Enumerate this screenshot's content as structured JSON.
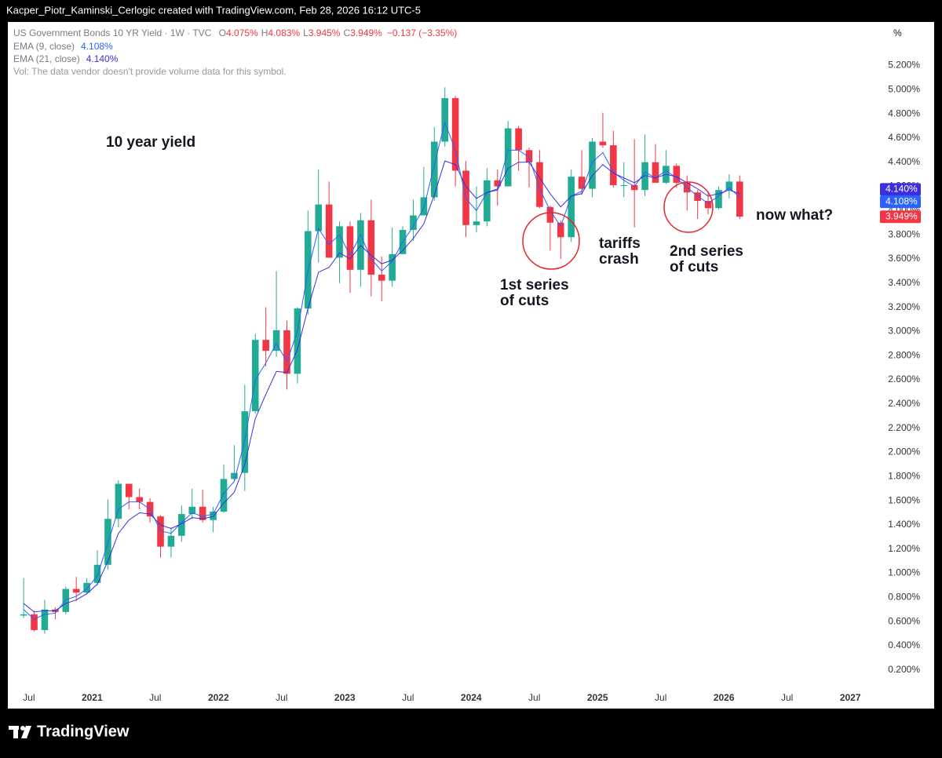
{
  "top_bar": {
    "text": "Kacper_Piotr_Kaminski_Cerlogic created with TradingView.com, Feb 28, 2026 16:12 UTC-5"
  },
  "footer": {
    "brand": "TradingView"
  },
  "chart_data": {
    "type": "candlestick",
    "header": {
      "symbol": "US Government Bonds 10 YR Yield · 1W · TVC",
      "ohlc": [
        {
          "key": "O",
          "value": 4.075,
          "label": "4.075%"
        },
        {
          "key": "H",
          "value": 4.083,
          "label": "4.083%"
        },
        {
          "key": "L",
          "value": 3.945,
          "label": "3.945%"
        },
        {
          "key": "C",
          "value": 3.949,
          "label": "3.949%"
        }
      ],
      "change": "−0.137 (−3.35%)",
      "volume_note": "Vol: The data vendor doesn't provide volume data for this symbol."
    },
    "unit_button": "%",
    "up_color": "#22ab94",
    "down_color": "#f23645",
    "x": [
      "2020-06",
      "2020-07",
      "2020-08",
      "2020-09",
      "2020-10",
      "2020-11",
      "2020-12",
      "2021-01",
      "2021-02",
      "2021-03",
      "2021-04",
      "2021-05",
      "2021-06",
      "2021-07",
      "2021-08",
      "2021-09",
      "2021-10",
      "2021-11",
      "2021-12",
      "2022-01",
      "2022-02",
      "2022-03",
      "2022-04",
      "2022-05",
      "2022-06",
      "2022-07",
      "2022-08",
      "2022-09",
      "2022-10",
      "2022-11",
      "2022-12",
      "2023-01",
      "2023-02",
      "2023-03",
      "2023-04",
      "2023-05",
      "2023-06",
      "2023-07",
      "2023-08",
      "2023-09",
      "2023-10",
      "2023-11",
      "2023-12",
      "2024-01",
      "2024-02",
      "2024-03",
      "2024-04",
      "2024-05",
      "2024-06",
      "2024-07",
      "2024-08",
      "2024-09",
      "2024-10",
      "2024-11",
      "2024-12",
      "2025-01",
      "2025-02",
      "2025-03",
      "2025-04",
      "2025-05",
      "2025-06",
      "2025-07",
      "2025-08",
      "2025-09",
      "2025-10",
      "2025-11",
      "2025-12",
      "2026-01",
      "2026-02"
    ],
    "open": [
      0.65,
      0.66,
      0.53,
      0.7,
      0.68,
      0.87,
      0.84,
      0.92,
      1.07,
      1.45,
      1.74,
      1.63,
      1.59,
      1.47,
      1.22,
      1.31,
      1.49,
      1.55,
      1.44,
      1.51,
      1.78,
      1.83,
      2.34,
      2.93,
      2.84,
      3.01,
      2.65,
      3.19,
      3.83,
      4.05,
      3.61,
      3.87,
      3.51,
      3.92,
      3.47,
      3.42,
      3.64,
      3.84,
      3.96,
      4.11,
      4.57,
      4.93,
      4.33,
      3.88,
      3.91,
      4.25,
      4.2,
      4.68,
      4.5,
      4.4,
      4.03,
      3.9,
      3.78,
      4.28,
      4.18,
      4.57,
      4.54,
      4.21,
      4.21,
      4.17,
      4.4,
      4.23,
      4.37,
      4.23,
      4.15,
      4.08,
      4.02,
      4.17,
      4.24
    ],
    "high": [
      0.96,
      0.69,
      0.78,
      0.72,
      0.89,
      0.97,
      0.96,
      1.19,
      1.61,
      1.77,
      1.74,
      1.7,
      1.62,
      1.48,
      1.38,
      1.56,
      1.7,
      1.69,
      1.55,
      1.9,
      2.06,
      2.56,
      2.98,
      3.2,
      3.5,
      3.09,
      3.2,
      4.0,
      4.34,
      4.24,
      3.91,
      3.91,
      3.98,
      4.09,
      3.62,
      3.86,
      3.87,
      4.09,
      4.36,
      4.69,
      5.02,
      4.95,
      4.41,
      4.2,
      4.35,
      4.34,
      4.74,
      4.7,
      4.52,
      4.5,
      4.04,
      3.92,
      4.34,
      4.5,
      4.6,
      4.81,
      4.66,
      4.4,
      4.59,
      4.63,
      4.55,
      4.5,
      4.39,
      4.29,
      4.17,
      4.16,
      4.2,
      4.3,
      4.29
    ],
    "low": [
      0.63,
      0.52,
      0.5,
      0.62,
      0.66,
      0.77,
      0.83,
      0.9,
      1.03,
      1.38,
      1.53,
      1.53,
      1.42,
      1.13,
      1.13,
      1.26,
      1.45,
      1.42,
      1.34,
      1.5,
      1.76,
      1.68,
      2.32,
      2.71,
      2.79,
      2.52,
      2.57,
      3.14,
      3.57,
      3.61,
      3.4,
      3.32,
      3.37,
      3.29,
      3.25,
      3.37,
      3.64,
      3.75,
      3.96,
      4.08,
      4.53,
      4.2,
      3.78,
      3.82,
      3.87,
      4.04,
      4.2,
      4.33,
      4.19,
      4.02,
      3.67,
      3.6,
      3.74,
      4.13,
      4.11,
      4.52,
      4.19,
      4.11,
      3.86,
      4.12,
      4.23,
      4.22,
      4.19,
      4.0,
      3.93,
      3.97,
      4.01,
      4.1,
      3.93
    ],
    "close": [
      0.66,
      0.53,
      0.7,
      0.68,
      0.87,
      0.84,
      0.92,
      1.07,
      1.45,
      1.74,
      1.63,
      1.59,
      1.47,
      1.22,
      1.31,
      1.49,
      1.55,
      1.44,
      1.51,
      1.78,
      1.83,
      2.34,
      2.93,
      2.84,
      3.01,
      2.65,
      3.19,
      3.83,
      4.05,
      3.61,
      3.87,
      3.51,
      3.92,
      3.47,
      3.42,
      3.64,
      3.84,
      3.96,
      4.11,
      4.57,
      4.93,
      4.33,
      3.88,
      3.91,
      4.25,
      4.2,
      4.68,
      4.5,
      4.4,
      4.03,
      3.9,
      3.78,
      4.28,
      4.18,
      4.57,
      4.54,
      4.21,
      4.21,
      4.17,
      4.4,
      4.23,
      4.37,
      4.23,
      4.15,
      4.08,
      4.02,
      4.17,
      4.24,
      3.95
    ],
    "series": [
      {
        "name": "EMA (9, close)",
        "color": "#2962ff",
        "last": {
          "value": 4.108,
          "label": "4.108%"
        },
        "values": [
          0.7,
          0.62,
          0.66,
          0.67,
          0.78,
          0.81,
          0.87,
          0.98,
          1.25,
          1.53,
          1.59,
          1.59,
          1.53,
          1.35,
          1.33,
          1.42,
          1.5,
          1.47,
          1.49,
          1.66,
          1.76,
          2.1,
          2.6,
          2.74,
          2.9,
          2.75,
          3.0,
          3.5,
          3.85,
          3.72,
          3.8,
          3.63,
          3.8,
          3.6,
          3.5,
          3.58,
          3.74,
          3.87,
          4.02,
          4.38,
          4.73,
          4.5,
          4.1,
          4.0,
          4.15,
          4.18,
          4.5,
          4.5,
          4.44,
          4.18,
          4.0,
          3.87,
          4.12,
          4.16,
          4.4,
          4.48,
          4.32,
          4.25,
          4.2,
          4.32,
          4.27,
          4.33,
          4.27,
          4.19,
          4.12,
          4.06,
          4.12,
          4.19,
          4.108
        ]
      },
      {
        "name": "EMA (21, close)",
        "color": "#3b2ee0",
        "last": {
          "value": 4.14,
          "label": "4.140%"
        },
        "values": [
          0.75,
          0.68,
          0.69,
          0.69,
          0.75,
          0.78,
          0.83,
          0.91,
          1.1,
          1.33,
          1.44,
          1.5,
          1.49,
          1.4,
          1.37,
          1.41,
          1.46,
          1.45,
          1.47,
          1.58,
          1.67,
          1.9,
          2.28,
          2.48,
          2.67,
          2.66,
          2.85,
          3.19,
          3.49,
          3.53,
          3.65,
          3.6,
          3.71,
          3.63,
          3.56,
          3.59,
          3.67,
          3.77,
          3.89,
          4.13,
          4.41,
          4.38,
          4.2,
          4.1,
          4.15,
          4.17,
          4.35,
          4.4,
          4.4,
          4.27,
          4.14,
          4.03,
          4.12,
          4.14,
          4.29,
          4.38,
          4.31,
          4.27,
          4.23,
          4.29,
          4.27,
          4.3,
          4.28,
          4.23,
          4.18,
          4.12,
          4.14,
          4.17,
          4.14
        ]
      }
    ],
    "ylim": [
      0.03,
      5.56
    ],
    "yticks": [
      {
        "value": 0.2,
        "label": "0.200%"
      },
      {
        "value": 0.4,
        "label": "0.400%"
      },
      {
        "value": 0.6,
        "label": "0.600%"
      },
      {
        "value": 0.8,
        "label": "0.800%"
      },
      {
        "value": 1.0,
        "label": "1.000%"
      },
      {
        "value": 1.2,
        "label": "1.200%"
      },
      {
        "value": 1.4,
        "label": "1.400%"
      },
      {
        "value": 1.6,
        "label": "1.600%"
      },
      {
        "value": 1.8,
        "label": "1.800%"
      },
      {
        "value": 2.0,
        "label": "2.000%"
      },
      {
        "value": 2.2,
        "label": "2.200%"
      },
      {
        "value": 2.4,
        "label": "2.400%"
      },
      {
        "value": 2.6,
        "label": "2.600%"
      },
      {
        "value": 2.8,
        "label": "2.800%"
      },
      {
        "value": 3.0,
        "label": "3.000%"
      },
      {
        "value": 3.2,
        "label": "3.200%"
      },
      {
        "value": 3.4,
        "label": "3.400%"
      },
      {
        "value": 3.6,
        "label": "3.600%"
      },
      {
        "value": 3.8,
        "label": "3.800%"
      },
      {
        "value": 4.0,
        "label": "4.000%"
      },
      {
        "value": 4.2,
        "label": "4.200%"
      },
      {
        "value": 4.4,
        "label": "4.400%"
      },
      {
        "value": 4.6,
        "label": "4.600%"
      },
      {
        "value": 4.8,
        "label": "4.800%"
      },
      {
        "value": 5.0,
        "label": "5.000%"
      },
      {
        "value": 5.2,
        "label": "5.200%"
      }
    ],
    "xlim": [
      "2020-05",
      "2027-03"
    ],
    "xticks": [
      {
        "value": "2020-07",
        "label": "Jul"
      },
      {
        "value": "2021-01",
        "label": "2021"
      },
      {
        "value": "2021-07",
        "label": "Jul"
      },
      {
        "value": "2022-01",
        "label": "2022"
      },
      {
        "value": "2022-07",
        "label": "Jul"
      },
      {
        "value": "2023-01",
        "label": "2023"
      },
      {
        "value": "2023-07",
        "label": "Jul"
      },
      {
        "value": "2024-01",
        "label": "2024"
      },
      {
        "value": "2024-07",
        "label": "Jul"
      },
      {
        "value": "2025-01",
        "label": "2025"
      },
      {
        "value": "2025-07",
        "label": "Jul"
      },
      {
        "value": "2026-01",
        "label": "2026"
      },
      {
        "value": "2026-07",
        "label": "Jul"
      },
      {
        "value": "2027-01",
        "label": "2027"
      }
    ],
    "annotations": [
      {
        "lines": [
          "10 year yield"
        ]
      },
      {
        "lines": [
          "1st series",
          "of cuts"
        ]
      },
      {
        "lines": [
          "tariffs",
          "crash"
        ]
      },
      {
        "lines": [
          "2nd series",
          "of cuts"
        ]
      },
      {
        "lines": [
          "now what?"
        ]
      }
    ]
  }
}
